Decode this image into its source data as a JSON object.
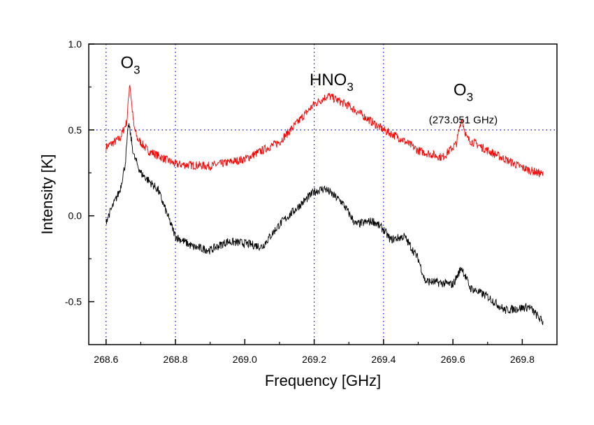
{
  "chart_data": {
    "type": "line",
    "xlabel": "Frequency [GHz]",
    "ylabel": "Intensity [K]",
    "xlim": [
      268.55,
      269.9
    ],
    "ylim": [
      -0.75,
      1.0
    ],
    "x_ticks": [
      "268.6",
      "268.8",
      "269.0",
      "269.2",
      "269.4",
      "269.6",
      "269.8"
    ],
    "x_tick_values": [
      268.6,
      268.8,
      269.0,
      269.2,
      269.4,
      269.6,
      269.8
    ],
    "y_ticks": [
      "1.0",
      "0.5",
      "0.0",
      "-0.5"
    ],
    "y_tick_values": [
      1.0,
      0.5,
      0.0,
      -0.5
    ],
    "grid_x": [
      268.6,
      268.8,
      269.2,
      269.4
    ],
    "grid_y": [
      0.5
    ],
    "grid_color": "#0000ff",
    "annotations": [
      {
        "text": "O",
        "sub": "3",
        "x": 268.67,
        "y": 0.86
      },
      {
        "text": "HNO",
        "sub": "3",
        "x": 269.25,
        "y": 0.76
      },
      {
        "text": "O",
        "sub": "3",
        "x": 269.63,
        "y": 0.7,
        "note": "(273.051 GHz)"
      }
    ],
    "noise_amplitude": 0.025,
    "series": [
      {
        "name": "upper",
        "color": "#ff0000",
        "points": [
          [
            268.6,
            0.4
          ],
          [
            268.64,
            0.45
          ],
          [
            268.66,
            0.55
          ],
          [
            268.668,
            0.78
          ],
          [
            268.68,
            0.52
          ],
          [
            268.69,
            0.45
          ],
          [
            268.72,
            0.38
          ],
          [
            268.8,
            0.3
          ],
          [
            268.9,
            0.29
          ],
          [
            269.0,
            0.33
          ],
          [
            269.1,
            0.43
          ],
          [
            269.2,
            0.65
          ],
          [
            269.24,
            0.7
          ],
          [
            269.3,
            0.64
          ],
          [
            269.4,
            0.5
          ],
          [
            269.45,
            0.45
          ],
          [
            269.5,
            0.38
          ],
          [
            269.57,
            0.34
          ],
          [
            269.61,
            0.42
          ],
          [
            269.625,
            0.57
          ],
          [
            269.64,
            0.45
          ],
          [
            269.7,
            0.38
          ],
          [
            269.8,
            0.28
          ],
          [
            269.86,
            0.24
          ]
        ]
      },
      {
        "name": "lower",
        "color": "#000000",
        "points": [
          [
            268.6,
            -0.03
          ],
          [
            268.64,
            0.15
          ],
          [
            268.655,
            0.3
          ],
          [
            268.665,
            0.54
          ],
          [
            268.68,
            0.35
          ],
          [
            268.7,
            0.25
          ],
          [
            268.75,
            0.15
          ],
          [
            268.8,
            -0.12
          ],
          [
            268.85,
            -0.18
          ],
          [
            268.9,
            -0.2
          ],
          [
            268.95,
            -0.15
          ],
          [
            269.0,
            -0.16
          ],
          [
            269.05,
            -0.18
          ],
          [
            269.1,
            -0.05
          ],
          [
            269.2,
            0.14
          ],
          [
            269.23,
            0.16
          ],
          [
            269.28,
            0.08
          ],
          [
            269.32,
            -0.05
          ],
          [
            269.37,
            -0.03
          ],
          [
            269.4,
            -0.08
          ],
          [
            269.42,
            -0.14
          ],
          [
            269.46,
            -0.12
          ],
          [
            269.5,
            -0.25
          ],
          [
            269.52,
            -0.38
          ],
          [
            269.6,
            -0.4
          ],
          [
            269.625,
            -0.3
          ],
          [
            269.65,
            -0.42
          ],
          [
            269.7,
            -0.47
          ],
          [
            269.75,
            -0.55
          ],
          [
            269.82,
            -0.53
          ],
          [
            269.86,
            -0.62
          ]
        ]
      }
    ]
  }
}
